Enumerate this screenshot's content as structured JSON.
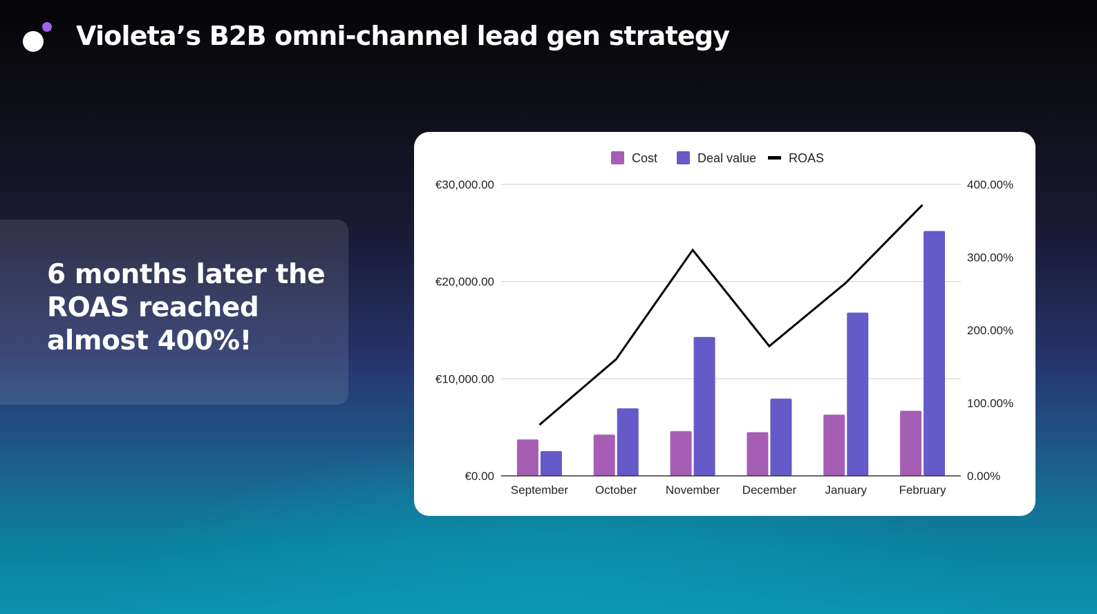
{
  "slide": {
    "title": "Violeta’s B2B omni-channel lead gen strategy",
    "callout": "6 months later the ROAS reached almost 400%!"
  },
  "colors": {
    "cost": "#a55eb4",
    "deal_value": "#6659c8",
    "roas": "#000000",
    "logo_accent": "#a064e8"
  },
  "chart_data": {
    "type": "bar",
    "categories": [
      "September",
      "October",
      "November",
      "December",
      "January",
      "February"
    ],
    "series": [
      {
        "name": "Cost",
        "type": "bar",
        "axis": "left",
        "values": [
          3750,
          4250,
          4600,
          4500,
          6300,
          6700
        ]
      },
      {
        "name": "Deal value",
        "type": "bar",
        "axis": "left",
        "values": [
          2550,
          6950,
          14300,
          7950,
          16800,
          25200
        ]
      },
      {
        "name": "ROAS",
        "type": "line",
        "axis": "right",
        "values": [
          70,
          160,
          310,
          178,
          265,
          372
        ]
      }
    ],
    "left_axis": {
      "min": 0,
      "max": 30000,
      "ticks": [
        "€0.00",
        "€10,000.00",
        "€20,000.00",
        "€30,000.00"
      ]
    },
    "right_axis": {
      "min": 0,
      "max": 400,
      "ticks": [
        "0.00%",
        "100.00%",
        "200.00%",
        "300.00%",
        "400.00%"
      ]
    },
    "legend": [
      "Cost",
      "Deal value",
      "ROAS"
    ],
    "legend_position": "top",
    "grid": true
  }
}
